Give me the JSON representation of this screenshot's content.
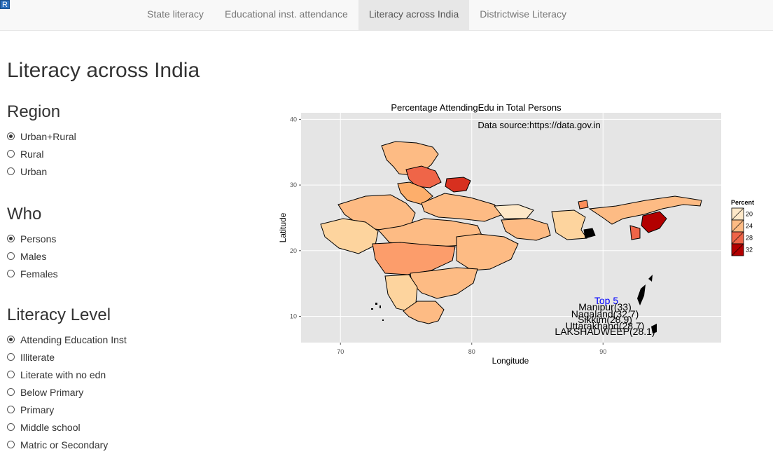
{
  "app_icon": "R",
  "nav": {
    "tabs": [
      "State literacy",
      "Educational inst. attendance",
      "Literacy across India",
      "Districtwise Literacy"
    ],
    "active_index": 2
  },
  "page_title": "Literacy across India",
  "sidebar": {
    "region": {
      "title": "Region",
      "options": [
        "Urban+Rural",
        "Rural",
        "Urban"
      ],
      "selected": "Urban+Rural"
    },
    "who": {
      "title": "Who",
      "options": [
        "Persons",
        "Males",
        "Females"
      ],
      "selected": "Persons"
    },
    "literacy_level": {
      "title": "Literacy Level",
      "options": [
        "Attending Education Inst",
        "Illiterate",
        "Literate with no edn",
        "Below Primary",
        "Primary",
        "Middle school",
        "Matric or Secondary"
      ],
      "selected": "Attending Education Inst"
    }
  },
  "chart_data": {
    "type": "choropleth",
    "title": "Percentage AttendingEdu in Total Persons",
    "subtitle": "Data source:https://data.gov.in",
    "xlabel": "Longitude",
    "ylabel": "Latitude",
    "x_ticks": [
      70,
      80,
      90
    ],
    "y_ticks": [
      10,
      20,
      30,
      40
    ],
    "xlim": [
      67,
      99
    ],
    "ylim": [
      6,
      41
    ],
    "grid": true,
    "legend": {
      "title": "Percent",
      "position": "right",
      "breaks": [
        20,
        24,
        28,
        32
      ],
      "colors": [
        "#fee8c8",
        "#fdbb84",
        "#ef6548",
        "#b30000"
      ]
    },
    "annotation_title": "Top 5",
    "annotation_color": "#0000ff",
    "top5": [
      {
        "label": "Manipur(33)",
        "value": 33
      },
      {
        "label": "Nagaland(32.7)",
        "value": 32.7
      },
      {
        "label": "Sikkim(28.9)",
        "value": 28.9
      },
      {
        "label": "Uttarakhand(28.7)",
        "value": 28.7
      },
      {
        "label": "LAKSHADWEEP(28.1)",
        "value": 28.1
      }
    ]
  }
}
